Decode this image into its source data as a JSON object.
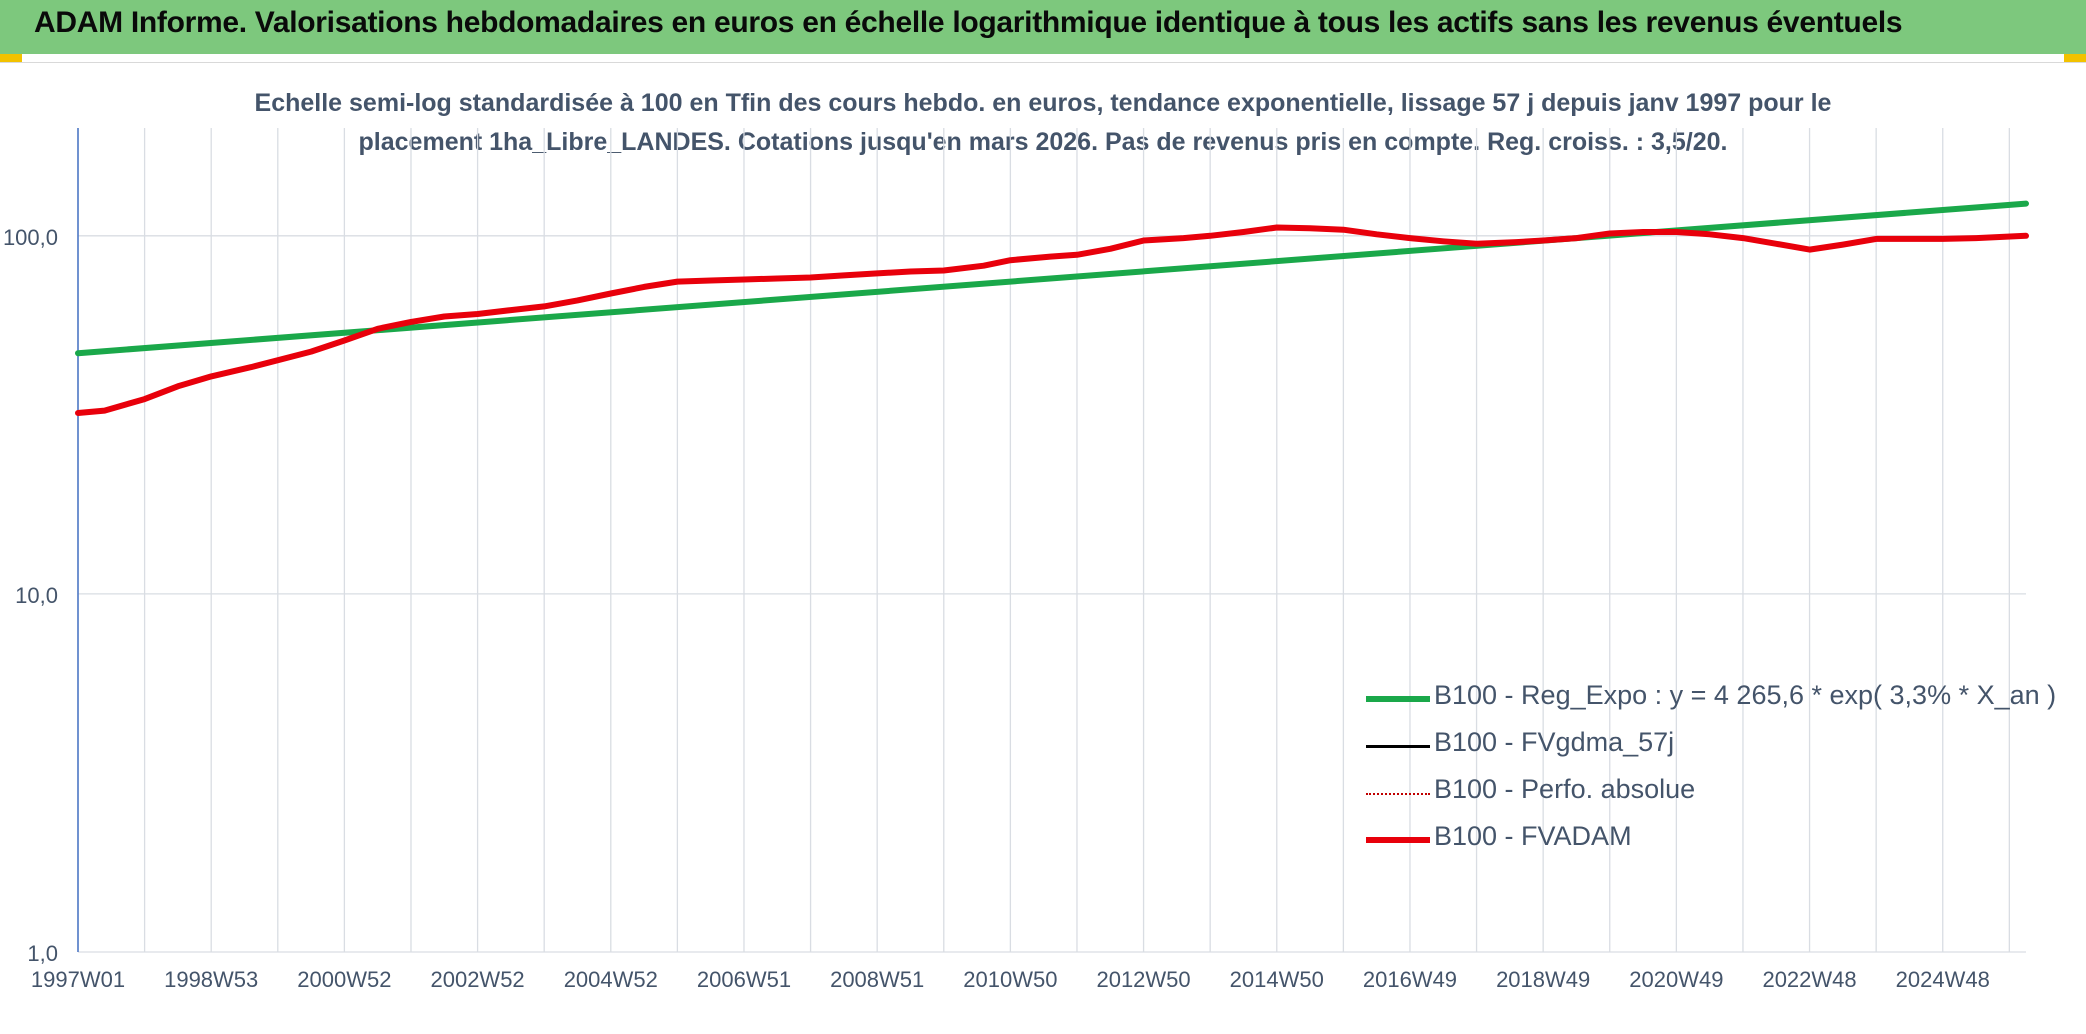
{
  "header": {
    "title": "ADAM Informe. Valorisations hebdomadaires en euros en échelle logarithmique identique à tous les actifs sans les revenus éventuels"
  },
  "colors": {
    "header_bg": "#7dc87d",
    "corner_accent": "#f2c200",
    "regression": "#1aa84a",
    "fvgdma": "#000000",
    "perfo": "#c00000",
    "fvadam": "#e8000b",
    "axis": "#4472c4",
    "grid": "#d9dde3",
    "text": "#44546a"
  },
  "chart_data": {
    "type": "line",
    "title_line1": "Echelle semi-log standardisée à 100 en Tfin des cours hebdo. en euros, tendance exponentielle, lissage 57 j depuis janv 1997 pour le",
    "title_line2": "placement 1ha_Libre_LANDES. Cotations jusqu'en mars 2026. Pas de revenus pris en compte. Reg. croiss. : 3,5/20.",
    "y_scale": "log",
    "ylim": [
      1,
      200
    ],
    "y_ticks": [
      1,
      10,
      100
    ],
    "y_tick_labels": [
      "1,0",
      "10,0",
      "100,0"
    ],
    "xlim": [
      1997.0,
      2026.25
    ],
    "x_ticks": [
      1997.0,
      1999.0,
      2001.0,
      2003.0,
      2005.0,
      2007.0,
      2009.0,
      2011.0,
      2013.0,
      2015.0,
      2017.0,
      2019.0,
      2021.0,
      2023.0,
      2025.0
    ],
    "x_tick_labels": [
      "1997W01",
      "1998W53",
      "2000W52",
      "2002W52",
      "2004W52",
      "2006W51",
      "2008W51",
      "2010W50",
      "2012W50",
      "2014W50",
      "2016W49",
      "2018W49",
      "2020W49",
      "2022W48",
      "2024W48"
    ],
    "grid": true,
    "legend_position": "right-lower",
    "legend": [
      "B100 - Reg_Expo : y = 4 265,6 * exp( 3,3% *  X_an )",
      "B100 - FVgdma_57j",
      "B100 - Perfo. absolue",
      "B100 - FVADAM"
    ],
    "series": [
      {
        "name": "B100 - Reg_Expo : y = 4 265,6 * exp( 3,3% *  X_an )",
        "style": "solid-thick",
        "x": [
          1997.0,
          2026.25
        ],
        "y": [
          47.0,
          123.0
        ]
      },
      {
        "name": "B100 - FVgdma_57j",
        "style": "solid-thin",
        "x": [],
        "y": []
      },
      {
        "name": "B100 - Perfo. absolue",
        "style": "dotted",
        "x": [],
        "y": []
      },
      {
        "name": "B100 - FVADAM",
        "style": "solid-thick",
        "x": [
          1997.0,
          1997.4,
          1998.0,
          1998.5,
          1999.0,
          1999.6,
          2000.5,
          2001.0,
          2001.5,
          2002.0,
          2002.5,
          2003.0,
          2003.5,
          2004.0,
          2004.5,
          2005.0,
          2005.5,
          2006.0,
          2006.5,
          2007.0,
          2007.5,
          2008.0,
          2008.5,
          2009.0,
          2009.5,
          2010.0,
          2010.6,
          2011.0,
          2011.6,
          2012.0,
          2012.5,
          2013.0,
          2013.6,
          2014.0,
          2014.5,
          2015.0,
          2015.5,
          2016.0,
          2016.5,
          2017.0,
          2017.5,
          2018.0,
          2018.6,
          2019.0,
          2019.5,
          2020.0,
          2020.5,
          2021.0,
          2021.5,
          2022.0,
          2022.5,
          2023.0,
          2023.5,
          2024.0,
          2024.5,
          2025.0,
          2025.5,
          2026.25
        ],
        "y": [
          32.0,
          32.5,
          35.0,
          38.0,
          40.5,
          43.0,
          47.5,
          51.0,
          55.0,
          57.5,
          59.5,
          60.5,
          62.0,
          63.5,
          66.0,
          69.0,
          72.0,
          74.5,
          75.0,
          75.5,
          76.0,
          76.5,
          77.5,
          78.5,
          79.5,
          80.0,
          82.5,
          85.5,
          87.5,
          88.5,
          92.0,
          97.0,
          98.5,
          100.0,
          102.5,
          105.5,
          105.0,
          104.0,
          101.0,
          98.5,
          96.5,
          95.0,
          96.0,
          97.0,
          98.5,
          101.5,
          102.5,
          102.5,
          101.0,
          98.5,
          95.0,
          91.5,
          94.5,
          98.0,
          98.0,
          98.0,
          98.5,
          100.0
        ]
      }
    ]
  }
}
